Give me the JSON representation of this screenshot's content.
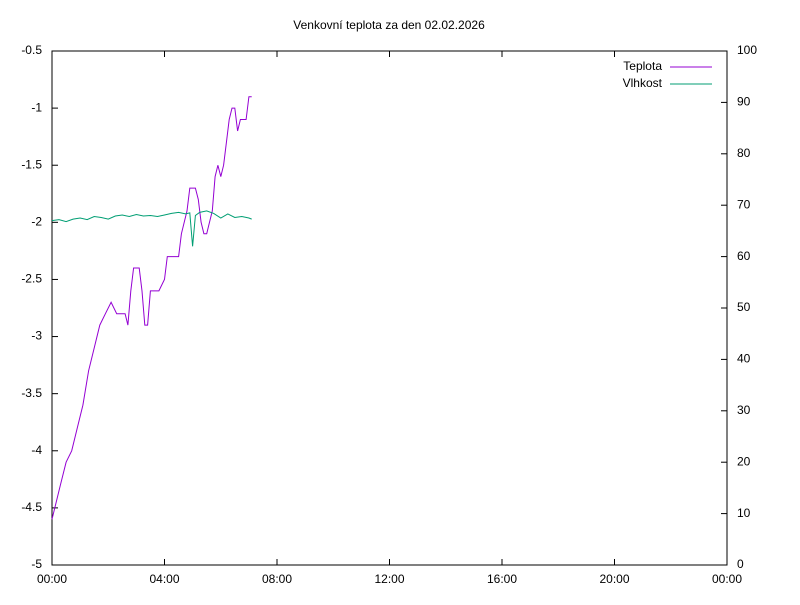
{
  "chart_data": {
    "type": "line",
    "title": "Venkovní teplota za den 02.02.2026",
    "xlim": [
      0,
      24
    ],
    "xticks": [
      {
        "value": 0,
        "label": "00:00"
      },
      {
        "value": 4,
        "label": "04:00"
      },
      {
        "value": 8,
        "label": "08:00"
      },
      {
        "value": 12,
        "label": "12:00"
      },
      {
        "value": 16,
        "label": "16:00"
      },
      {
        "value": 20,
        "label": "20:00"
      },
      {
        "value": 24,
        "label": "00:00"
      }
    ],
    "ylim": [
      -5,
      -0.5
    ],
    "yticks": [
      -5,
      -4.5,
      -4,
      -3.5,
      -3,
      -2.5,
      -2,
      -1.5,
      -1,
      -0.5
    ],
    "y2lim": [
      0,
      100
    ],
    "y2ticks": [
      0,
      10,
      20,
      30,
      40,
      50,
      60,
      70,
      80,
      90,
      100
    ],
    "legend": "top-right",
    "series": [
      {
        "name": "Teplota",
        "color": "#9400d3",
        "x": [
          0,
          0.1,
          0.3,
          0.5,
          0.7,
          0.9,
          1.1,
          1.3,
          1.5,
          1.7,
          1.9,
          2.1,
          2.3,
          2.6,
          2.7,
          2.8,
          2.9,
          3.1,
          3.2,
          3.3,
          3.4,
          3.5,
          3.8,
          4.0,
          4.1,
          4.5,
          4.6,
          4.8,
          4.9,
          5.1,
          5.2,
          5.3,
          5.4,
          5.5,
          5.6,
          5.7,
          5.8,
          5.9,
          6.0,
          6.1,
          6.2,
          6.3,
          6.4,
          6.5,
          6.6,
          6.7,
          6.9,
          7.0,
          7.1
        ],
        "values": [
          -4.6,
          -4.5,
          -4.3,
          -4.1,
          -4.0,
          -3.8,
          -3.6,
          -3.3,
          -3.1,
          -2.9,
          -2.8,
          -2.7,
          -2.8,
          -2.8,
          -2.9,
          -2.6,
          -2.4,
          -2.4,
          -2.6,
          -2.9,
          -2.9,
          -2.6,
          -2.6,
          -2.5,
          -2.3,
          -2.3,
          -2.1,
          -1.9,
          -1.7,
          -1.7,
          -1.8,
          -2.0,
          -2.1,
          -2.1,
          -2.0,
          -1.9,
          -1.6,
          -1.5,
          -1.6,
          -1.5,
          -1.3,
          -1.1,
          -1.0,
          -1.0,
          -1.2,
          -1.1,
          -1.1,
          -0.9,
          -0.9
        ]
      },
      {
        "name": "Vlhkost",
        "color": "#009e73",
        "axis": "y2",
        "x": [
          0,
          0.25,
          0.5,
          0.75,
          1,
          1.25,
          1.5,
          1.75,
          2,
          2.25,
          2.5,
          2.75,
          3,
          3.25,
          3.5,
          3.75,
          4,
          4.25,
          4.5,
          4.75,
          4.9,
          5.0,
          5.1,
          5.25,
          5.5,
          5.75,
          6,
          6.25,
          6.5,
          6.75,
          7,
          7.1
        ],
        "values": [
          67,
          67.2,
          66.8,
          67.3,
          67.5,
          67.2,
          67.8,
          67.6,
          67.3,
          67.9,
          68.1,
          67.8,
          68.2,
          67.9,
          68.0,
          67.8,
          68.1,
          68.4,
          68.6,
          68.3,
          68.5,
          62.0,
          68.0,
          68.6,
          68.9,
          68.4,
          67.5,
          68.3,
          67.6,
          67.8,
          67.5,
          67.3
        ]
      }
    ]
  }
}
